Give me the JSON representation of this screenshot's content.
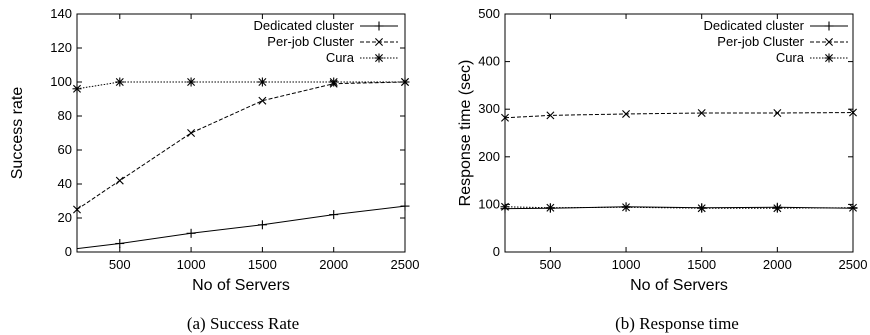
{
  "chart_data": [
    {
      "type": "line",
      "caption": "(a) Success Rate",
      "xlabel": "No of Servers",
      "ylabel": "Success rate",
      "xlim": [
        200,
        2500
      ],
      "ylim": [
        0,
        140
      ],
      "xticks": [
        500,
        1000,
        1500,
        2000,
        2500
      ],
      "yticks": [
        0,
        20,
        40,
        60,
        80,
        100,
        120,
        140
      ],
      "legend_position": "top-right",
      "grid": false,
      "series": [
        {
          "name": "Dedicated cluster",
          "marker": "plus",
          "dash": "solid",
          "x": [
            200,
            500,
            1000,
            1500,
            2000,
            2500
          ],
          "y": [
            2,
            5,
            11,
            16,
            22,
            27
          ]
        },
        {
          "name": "Per-job Cluster",
          "marker": "x",
          "dash": "dashed",
          "x": [
            200,
            500,
            1000,
            1500,
            2000,
            2500
          ],
          "y": [
            25,
            42,
            70,
            89,
            99,
            100
          ]
        },
        {
          "name": "Cura",
          "marker": "star",
          "dash": "dotted",
          "x": [
            200,
            500,
            1000,
            1500,
            2000,
            2500
          ],
          "y": [
            96,
            100,
            100,
            100,
            100,
            100
          ]
        }
      ]
    },
    {
      "type": "line",
      "caption": "(b) Response time",
      "xlabel": "No of Servers",
      "ylabel": "Response time (sec)",
      "xlim": [
        200,
        2500
      ],
      "ylim": [
        0,
        500
      ],
      "xticks": [
        500,
        1000,
        1500,
        2000,
        2500
      ],
      "yticks": [
        0,
        100,
        200,
        300,
        400,
        500
      ],
      "legend_position": "top-right",
      "grid": false,
      "series": [
        {
          "name": "Dedicated cluster",
          "marker": "plus",
          "dash": "solid",
          "x": [
            200,
            500,
            1000,
            1500,
            2000,
            2500
          ],
          "y": [
            91,
            92,
            95,
            93,
            94,
            92
          ]
        },
        {
          "name": "Per-job Cluster",
          "marker": "x",
          "dash": "dashed",
          "x": [
            200,
            500,
            1000,
            1500,
            2000,
            2500
          ],
          "y": [
            282,
            287,
            290,
            292,
            292,
            293
          ]
        },
        {
          "name": "Cura",
          "marker": "star",
          "dash": "dotted",
          "x": [
            200,
            500,
            1000,
            1500,
            2000,
            2500
          ],
          "y": [
            95,
            93,
            94,
            92,
            92,
            93
          ]
        }
      ]
    }
  ]
}
